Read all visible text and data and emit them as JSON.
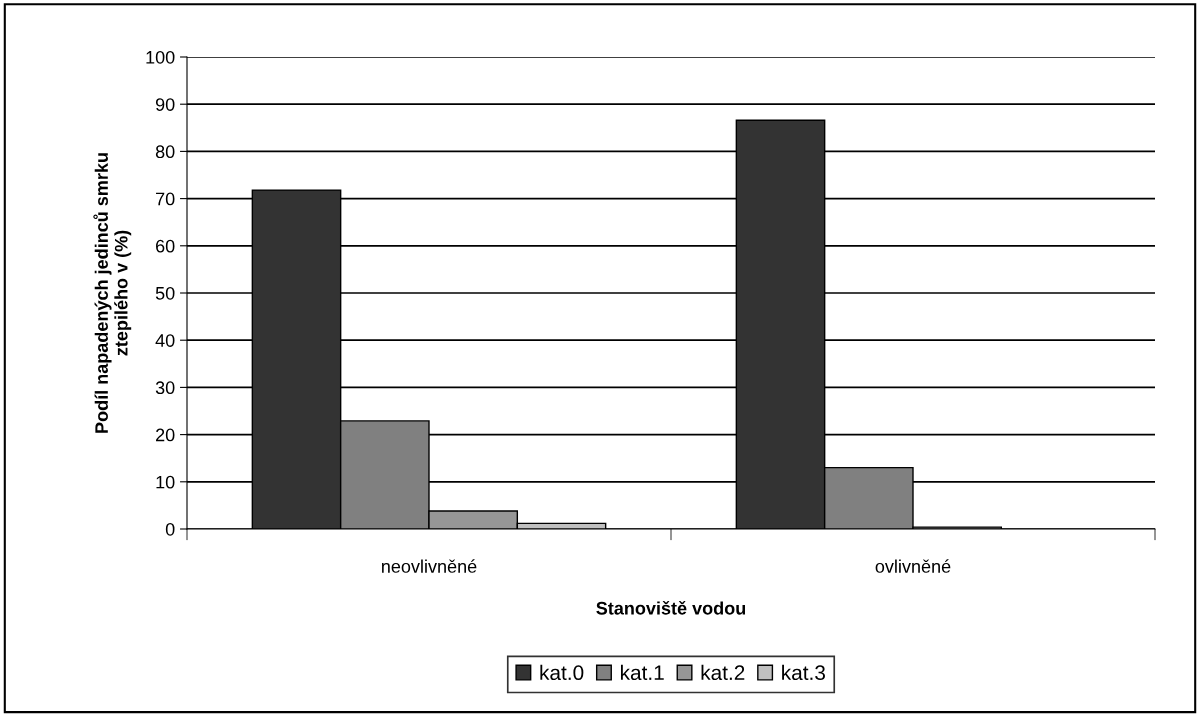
{
  "chart_data": {
    "type": "bar",
    "xlabel": "Stanoviště vodou",
    "ylabel": "Podíl napadených jedinců smrku\nztepilého v (%)",
    "categories": [
      "neovlivněné",
      "ovlivněné"
    ],
    "series": [
      {
        "name": "kat.0",
        "color": "#333333",
        "values": [
          71.8,
          86.6
        ]
      },
      {
        "name": "kat.1",
        "color": "#808080",
        "values": [
          22.9,
          13.0
        ]
      },
      {
        "name": "kat.2",
        "color": "#969696",
        "values": [
          3.8,
          0.4
        ]
      },
      {
        "name": "kat.3",
        "color": "#c0c0c0",
        "values": [
          1.2,
          0
        ]
      }
    ],
    "ylim": [
      0,
      100
    ],
    "yticks": [
      0,
      10,
      20,
      30,
      40,
      50,
      60,
      70,
      80,
      90,
      100
    ],
    "grid": "y",
    "legend": "bottom"
  }
}
